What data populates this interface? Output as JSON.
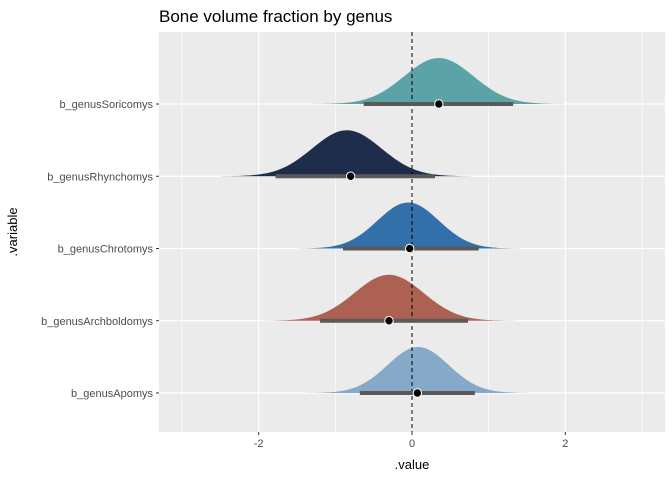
{
  "chart_data": {
    "type": "halfeye",
    "title": "Bone volume fraction by genus",
    "xlabel": ".value",
    "ylabel": ".variable",
    "xlim": [
      -3.3,
      3.3
    ],
    "x_ticks": [
      -2,
      0,
      2
    ],
    "reference_line": {
      "x": 0,
      "style": "dashed"
    },
    "panel_background": "#ebebeb",
    "grid": true,
    "series": [
      {
        "name": "b_genusSoricomys",
        "color": "#5ba3a7",
        "mean": 0.35,
        "sd": 0.45,
        "range": [
          -1.6,
          2.35
        ],
        "interval": [
          -0.63,
          1.32
        ],
        "point": 0.35
      },
      {
        "name": "b_genusRhynchomys",
        "color": "#1f2d4c",
        "mean": -0.85,
        "sd": 0.45,
        "range": [
          -2.63,
          1.27
        ],
        "interval": [
          -1.78,
          0.3
        ],
        "point": -0.8
      },
      {
        "name": "b_genusChrotomys",
        "color": "#336fa8",
        "mean": -0.05,
        "sd": 0.4,
        "range": [
          -1.87,
          1.78
        ],
        "interval": [
          -0.9,
          0.87
        ],
        "point": -0.03
      },
      {
        "name": "b_genusArchboldomys",
        "color": "#ad6153",
        "mean": -0.3,
        "sd": 0.45,
        "range": [
          -2.2,
          1.78
        ],
        "interval": [
          -1.2,
          0.73
        ],
        "point": -0.3
      },
      {
        "name": "b_genusApomys",
        "color": "#86a9c9",
        "mean": 0.08,
        "sd": 0.4,
        "range": [
          -1.75,
          1.83
        ],
        "interval": [
          -0.68,
          0.82
        ],
        "point": 0.07
      }
    ]
  }
}
